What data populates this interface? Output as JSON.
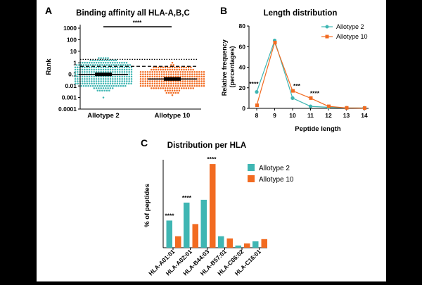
{
  "panels": {
    "a": {
      "letter": "A"
    },
    "b": {
      "letter": "B"
    },
    "c": {
      "letter": "C"
    }
  },
  "colors": {
    "allotype2": "#3FB6B3",
    "allotype10": "#F26B21",
    "axis": "#000000"
  },
  "chart_data": [
    {
      "id": "A",
      "type": "scatter",
      "title": "Binding affinity all HLA-A,B,C",
      "ylabel": "Rank",
      "yscale": "log",
      "ylim": [
        0.0001,
        1000
      ],
      "yticks": [
        "1000",
        "100",
        "10",
        "1",
        "0.1",
        "0.01",
        "0.001",
        "0.0001"
      ],
      "ytick_values": [
        1000,
        100,
        10,
        1,
        0.1,
        0.01,
        0.001,
        0.0001
      ],
      "categories": [
        "Allotype 2",
        "Allotype 10"
      ],
      "medians": [
        0.1,
        0.04
      ],
      "reference_lines": [
        {
          "style": "dotted",
          "value": 2
        },
        {
          "style": "dashed",
          "value": 0.5
        }
      ],
      "significance": "****"
    },
    {
      "id": "B",
      "type": "line",
      "title": "Length distribution",
      "xlabel": "Peptide length",
      "ylabel": "Relative frequency (percentages)",
      "ylabel_lines": [
        "Relative frequency",
        "(percentages)"
      ],
      "x": [
        8,
        9,
        10,
        11,
        12,
        13,
        14
      ],
      "xticks": [
        "8",
        "9",
        "10",
        "11",
        "12",
        "13",
        "14"
      ],
      "ylim": [
        0,
        80
      ],
      "yticks": [
        "0",
        "20",
        "40",
        "60",
        "80"
      ],
      "ytick_values": [
        0,
        20,
        40,
        60,
        80
      ],
      "legend_position": "top-right",
      "series": [
        {
          "name": "Allotype 2",
          "values": [
            16,
            66,
            10,
            2,
            1,
            0.5,
            0.5
          ]
        },
        {
          "name": "Allotype 10",
          "values": [
            3,
            64,
            17,
            10,
            2,
            0.5,
            0.3
          ]
        }
      ],
      "annotations": [
        {
          "x": 8,
          "text": "****"
        },
        {
          "x": 10,
          "text": "***"
        },
        {
          "x": 11,
          "text": "****"
        }
      ]
    },
    {
      "id": "C",
      "type": "bar",
      "title": "Distribution per  HLA",
      "ylabel": "% of peptides",
      "categories": [
        "HLA-A01:01",
        "HLA-A02:01",
        "HLA-B44:03",
        "HLA-B57:01",
        "HLA-C06:02",
        "HLA-C16:01"
      ],
      "ylim": [
        0,
        60
      ],
      "legend_position": "top-right",
      "series": [
        {
          "name": "Allotype 2",
          "values": [
            19,
            31.5,
            33.5,
            8,
            1.5,
            4.5
          ]
        },
        {
          "name": "Allotype 10",
          "values": [
            8,
            16.5,
            58.5,
            6.5,
            3,
            6
          ]
        }
      ],
      "annotations": [
        {
          "category": "HLA-A01:01",
          "text": "****"
        },
        {
          "category": "HLA-A02:01",
          "text": "****"
        },
        {
          "category": "HLA-B44:03",
          "text": "****"
        }
      ]
    }
  ]
}
